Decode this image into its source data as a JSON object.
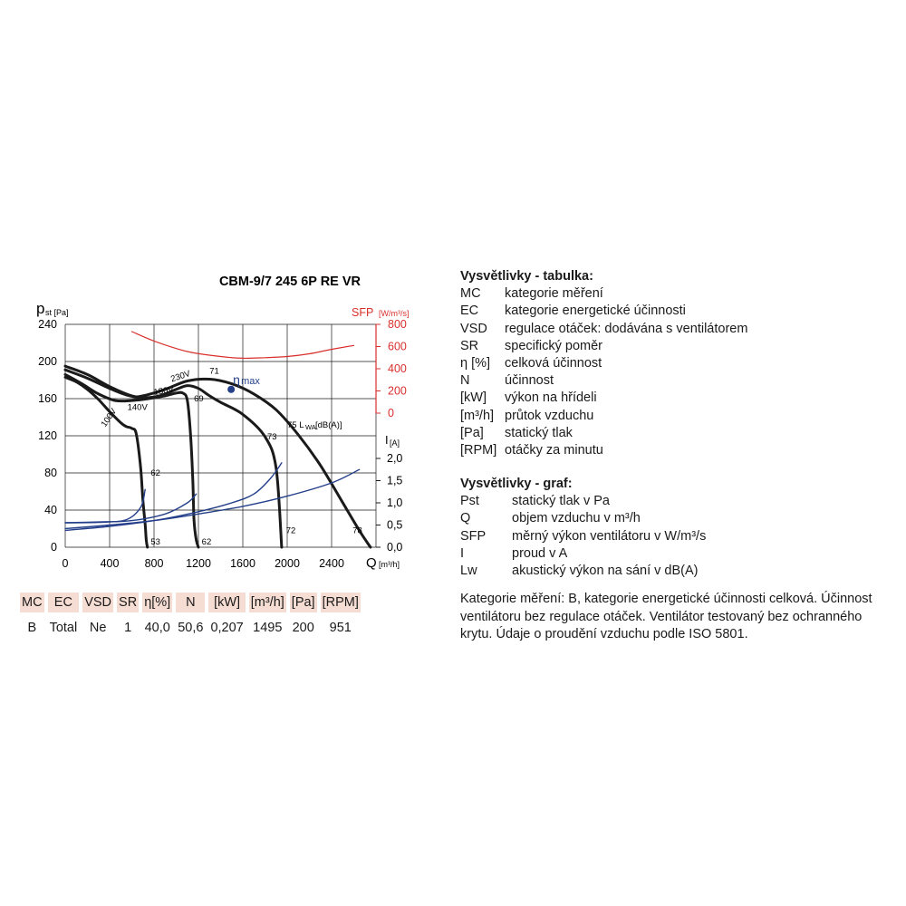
{
  "chart_data": {
    "type": "line",
    "title": "CBM-9/7 245 6P RE VR",
    "xlabel": "Q",
    "xunit": "[m³/h]",
    "ylabel": "p",
    "ylabel_sub": "st [Pa]",
    "y2label": "SFP",
    "y2unit": "[W/m³/s]",
    "y3label": "I",
    "y3unit": "[A]",
    "xlim": [
      0,
      2800
    ],
    "ylim": [
      0,
      240
    ],
    "x_ticks": [
      "0",
      "400",
      "800",
      "1200",
      "1600",
      "2000",
      "2400"
    ],
    "x_tick_values": [
      0,
      400,
      800,
      1200,
      1600,
      2000,
      2400
    ],
    "y_ticks": [
      "0",
      "40",
      "80",
      "120",
      "160",
      "200",
      "240"
    ],
    "y_tick_values": [
      0,
      40,
      80,
      120,
      160,
      200,
      240
    ],
    "sfp_ticks": [
      "0",
      "200",
      "400",
      "600",
      "800"
    ],
    "sfp_tick_values": [
      0,
      200,
      400,
      600,
      800
    ],
    "current_ticks": [
      "0,0",
      "0,5",
      "1,0",
      "1,5",
      "2,0"
    ],
    "current_tick_values": [
      0,
      0.5,
      1.0,
      1.5,
      2.0
    ],
    "grid": true,
    "colors": {
      "pressure": "#1a1a1a",
      "current": "#243f8a",
      "sfp": "#d9302c",
      "grid": "#1a1a1a",
      "accent_header": "#f5ddd3"
    },
    "series": [
      {
        "name": "230V",
        "axis": "pressure",
        "x": [
          0,
          200,
          400,
          600,
          700,
          900,
          1100,
          1300,
          1500,
          1700,
          1900,
          2100,
          2300,
          2500,
          2650,
          2750
        ],
        "y": [
          195,
          186,
          173,
          163,
          163,
          170,
          179,
          181,
          176,
          165,
          148,
          121,
          88,
          48,
          18,
          0
        ]
      },
      {
        "name": "180V",
        "axis": "pressure",
        "x": [
          0,
          200,
          400,
          550,
          700,
          850,
          1000,
          1100,
          1200,
          1300,
          1400,
          1600,
          1800,
          1900,
          1950
        ],
        "y": [
          191,
          182,
          171,
          164,
          161,
          163,
          170,
          174,
          171,
          163,
          156,
          143,
          119,
          85,
          0
        ]
      },
      {
        "name": "140V",
        "axis": "pressure",
        "x": [
          0,
          150,
          300,
          450,
          600,
          750,
          900,
          1000,
          1060,
          1100,
          1130,
          1150,
          1160,
          1180,
          1200
        ],
        "y": [
          186,
          176,
          165,
          158,
          158,
          160,
          163,
          166,
          166,
          158,
          120,
          70,
          30,
          8,
          0
        ]
      },
      {
        "name": "100V",
        "axis": "pressure",
        "x": [
          0,
          100,
          200,
          300,
          400,
          500,
          550,
          600,
          640,
          680,
          700,
          720,
          730,
          740
        ],
        "y": [
          183,
          178,
          170,
          159,
          146,
          134,
          130,
          128,
          122,
          85,
          50,
          25,
          8,
          0
        ]
      },
      {
        "name": "SFP",
        "axis": "sfp",
        "x": [
          600,
          800,
          1100,
          1400,
          1600,
          1800,
          2000,
          2200,
          2400,
          2600
        ],
        "y": [
          735,
          650,
          555,
          510,
          495,
          500,
          510,
          535,
          575,
          610
        ]
      },
      {
        "name": "I 230V",
        "axis": "current",
        "x": [
          0,
          400,
          800,
          1200,
          1600,
          2000,
          2400,
          2650
        ],
        "y": [
          0.42,
          0.5,
          0.6,
          0.75,
          0.92,
          1.15,
          1.45,
          1.75
        ]
      },
      {
        "name": "I 180V",
        "axis": "current",
        "x": [
          0,
          400,
          800,
          1200,
          1500,
          1700,
          1850,
          1950
        ],
        "y": [
          0.38,
          0.47,
          0.6,
          0.8,
          1.0,
          1.2,
          1.55,
          1.9
        ]
      },
      {
        "name": "I 140V",
        "axis": "current",
        "x": [
          0,
          300,
          600,
          900,
          1100,
          1180
        ],
        "y": [
          0.55,
          0.57,
          0.6,
          0.75,
          1.0,
          1.2
        ]
      },
      {
        "name": "I 100V",
        "axis": "current",
        "x": [
          0,
          300,
          550,
          680,
          720
        ],
        "y": [
          0.55,
          0.56,
          0.62,
          0.9,
          1.3
        ]
      }
    ],
    "annotations": [
      {
        "text": "230V",
        "x": 960,
        "y": 178,
        "rotate": -18
      },
      {
        "text": "180V",
        "x": 800,
        "y": 164,
        "rotate": -8
      },
      {
        "text": "140V",
        "x": 560,
        "y": 148,
        "rotate": 0
      },
      {
        "text": "100V",
        "x": 360,
        "y": 129,
        "rotate": -55
      },
      {
        "text": "71",
        "x": 1300,
        "y": 187,
        "rotate": 0
      },
      {
        "text": "69",
        "x": 1160,
        "y": 157,
        "rotate": 0
      },
      {
        "text": "62",
        "x": 770,
        "y": 77,
        "rotate": 0
      },
      {
        "text": "53",
        "x": 770,
        "y": 3,
        "rotate": 0
      },
      {
        "text": "62",
        "x": 1230,
        "y": 3,
        "rotate": 0
      },
      {
        "text": "73",
        "x": 1820,
        "y": 116,
        "rotate": 0
      },
      {
        "text": "72",
        "x": 1990,
        "y": 15,
        "rotate": 0
      },
      {
        "text": "78",
        "x": 2590,
        "y": 15,
        "rotate": 0
      },
      {
        "text": "75 L",
        "x": 2000,
        "y": 129,
        "rotate": 0
      }
    ],
    "eta_label": "η",
    "eta_sub": "max",
    "eta_point": {
      "x": 1495,
      "y": 170
    },
    "lwa_sub": "WA",
    "lwa_unit": "[dB(A)]"
  },
  "table": {
    "headers": [
      "MC",
      "EC",
      "VSD",
      "SR",
      "η[%]",
      "N",
      "[kW]",
      "[m³/h]",
      "[Pa]",
      "[RPM]"
    ],
    "values": [
      "B",
      "Total",
      "Ne",
      "1",
      "40,0",
      "50,6",
      "0,207",
      "1495",
      "200",
      "951"
    ]
  },
  "legend_table": {
    "title": "Vysvětlivky - tabulka:",
    "rows": [
      {
        "k": "MC",
        "v": "kategorie měření"
      },
      {
        "k": "EC",
        "v": "kategorie energetické účinnosti"
      },
      {
        "k": "VSD",
        "v": "regulace otáček: dodávána s ventilátorem"
      },
      {
        "k": "SR",
        "v": "specifický poměr"
      },
      {
        "k": "η [%]",
        "v": "celková účinnost"
      },
      {
        "k": "N",
        "v": "účinnost"
      },
      {
        "k": "[kW]",
        "v": "výkon na hřídeli"
      },
      {
        "k": "[m³/h]",
        "v": "průtok vzduchu"
      },
      {
        "k": "[Pa]",
        "v": "statický tlak"
      },
      {
        "k": "[RPM]",
        "v": "otáčky za minutu"
      }
    ]
  },
  "legend_graph": {
    "title": "Vysvětlivky - graf:",
    "rows": [
      {
        "k": "Pst",
        "v": "statický tlak v Pa"
      },
      {
        "k": "Q",
        "v": "objem vzduchu v m³/h"
      },
      {
        "k": "SFP",
        "v": "měrný výkon ventilátoru v W/m³/s"
      },
      {
        "k": "I",
        "v": "proud v A"
      },
      {
        "k": "Lw",
        "v": "akustický výkon na sání v dB(A)"
      }
    ]
  },
  "note": "Kategorie měření: B, kategorie energetické účinnosti celková. Účinnost ventilátoru bez regulace otáček. Ventilátor testovaný bez ochranného krytu. Údaje o proudění vzduchu podle ISO 5801."
}
